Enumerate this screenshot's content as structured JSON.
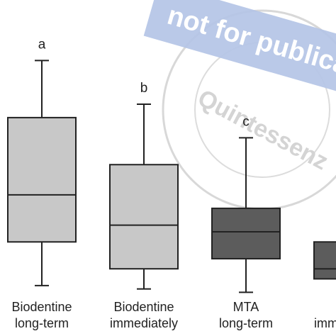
{
  "chart_data": {
    "type": "box",
    "categories": [
      [
        "Biodentine",
        "long-term"
      ],
      [
        "Biodentine",
        "immediately"
      ],
      [
        "MTA",
        "long-term"
      ],
      [
        null,
        "immediately"
      ]
    ],
    "group_labels": [
      "a",
      "b",
      "c",
      null
    ],
    "colors": [
      "#c8c8c8",
      "#c8c8c8",
      "#5c5c5c",
      "#5c5c5c"
    ],
    "boxes": [
      {
        "min": 15,
        "q1": 28,
        "median": 42,
        "q3": 65,
        "max": 82
      },
      {
        "min": 14,
        "q1": 20,
        "median": 33,
        "q3": 51,
        "max": 69
      },
      {
        "min": 13,
        "q1": 23,
        "median": 31,
        "q3": 38,
        "max": 59
      },
      {
        "min": null,
        "q1": 17,
        "median": 20,
        "q3": 28,
        "max": null
      }
    ],
    "ylim": [
      0,
      100
    ]
  },
  "watermark": {
    "banner": "not for publica",
    "stamp": "Quintessenz"
  }
}
